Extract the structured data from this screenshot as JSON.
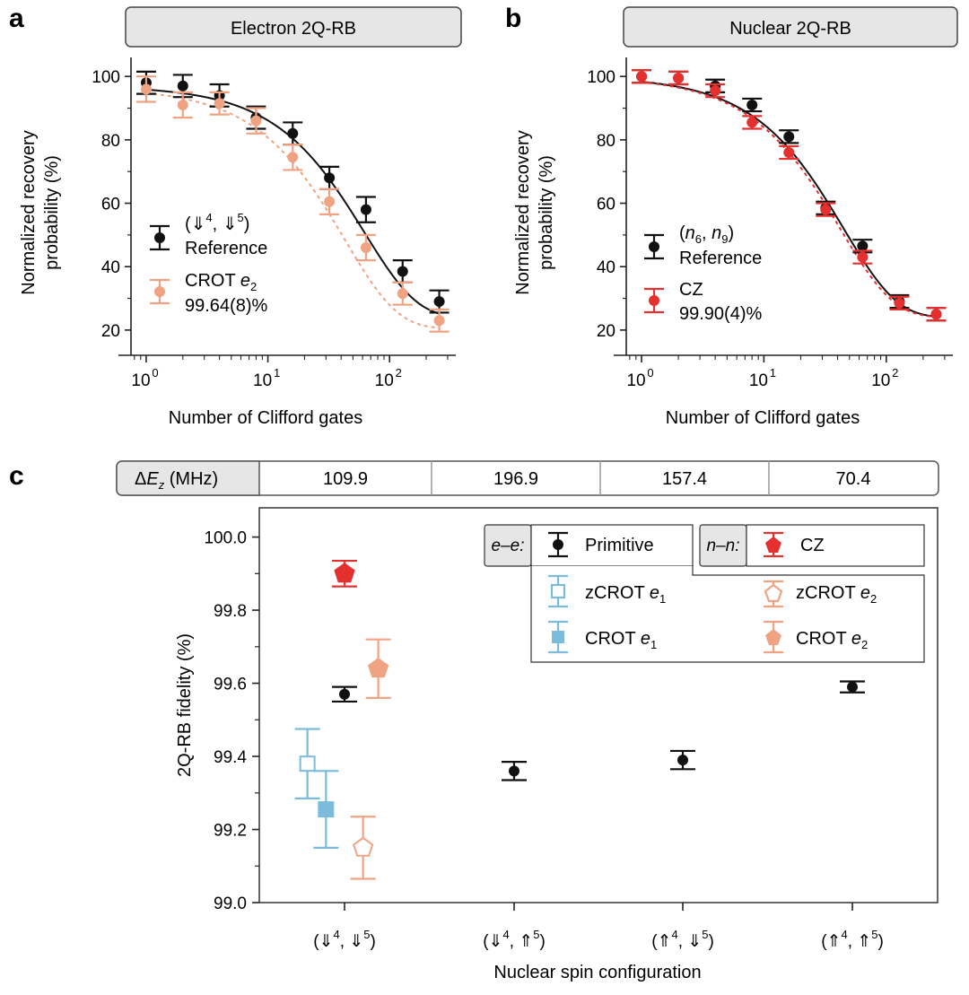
{
  "panel_labels": {
    "a": "a",
    "b": "b",
    "c": "c"
  },
  "colors": {
    "black": "#111111",
    "salmon": "#f0a383",
    "red": "#e53030",
    "lightblue": "#7bbcdc",
    "header_fill": "#e6e6e6",
    "axis": "#222222"
  },
  "chart_data": [
    {
      "type": "scatter",
      "panel": "a",
      "title": "Electron 2Q-RB",
      "xlabel": "Number of Clifford gates",
      "ylabel": "Normalized recovery probability (%)",
      "xscale": "log",
      "xlim": [
        0.75,
        350
      ],
      "ylim": [
        16,
        106
      ],
      "xticks": [
        1,
        10,
        100
      ],
      "xtick_base": "10",
      "xtick_exponents": [
        "0",
        "1",
        "2"
      ],
      "yticks": [
        20,
        40,
        60,
        80,
        100
      ],
      "ytick_labels": [
        "20",
        "40",
        "60",
        "80",
        "100"
      ],
      "series": [
        {
          "id": "reference",
          "legend_line1": "(⇓4, ⇓5)",
          "legend_line2": "Reference",
          "color": "#111111",
          "x": [
            1,
            2,
            4,
            8,
            16,
            32,
            64,
            128,
            256
          ],
          "y": [
            98,
            97,
            94,
            87,
            82,
            68,
            58,
            38.5,
            29
          ],
          "err": [
            3.5,
            3.5,
            3.5,
            3.5,
            3.5,
            3.5,
            4,
            3.5,
            3.5
          ],
          "fit": {
            "A": 73,
            "p": 0.984,
            "B": 24,
            "style": "solid"
          }
        },
        {
          "id": "crot_e2",
          "legend_line1": "CROT e2",
          "legend_line2": "99.64(8)%",
          "color": "#f0a383",
          "x": [
            1,
            2,
            4,
            8,
            16,
            32,
            64,
            128,
            256
          ],
          "y": [
            96,
            91,
            91.5,
            86,
            74.5,
            60.5,
            46,
            31.5,
            23
          ],
          "err": [
            4,
            4,
            3.5,
            4,
            4,
            4,
            4,
            3.5,
            3.5
          ],
          "fit": {
            "A": 76,
            "p": 0.977,
            "B": 20.5,
            "style": "dashed"
          }
        }
      ]
    },
    {
      "type": "scatter",
      "panel": "b",
      "title": "Nuclear 2Q-RB",
      "xlabel": "Number of Clifford gates",
      "ylabel": "Normalized recovery probability (%)",
      "xscale": "log",
      "xlim": [
        0.75,
        350
      ],
      "ylim": [
        16,
        106
      ],
      "xticks": [
        1,
        10,
        100
      ],
      "xtick_base": "10",
      "xtick_exponents": [
        "0",
        "1",
        "2"
      ],
      "yticks": [
        20,
        40,
        60,
        80,
        100
      ],
      "ytick_labels": [
        "20",
        "40",
        "60",
        "80",
        "100"
      ],
      "series": [
        {
          "id": "reference",
          "legend_line1": "(n6, n9)",
          "legend_line2": "Reference",
          "color": "#111111",
          "x": [
            1,
            2,
            4,
            8,
            16,
            32,
            64,
            128,
            256
          ],
          "y": [
            100,
            99.5,
            97,
            91,
            81,
            58.5,
            46.5,
            29,
            25
          ],
          "err": [
            2,
            2,
            2,
            2,
            2,
            2,
            2,
            2,
            2
          ],
          "fit": {
            "A": 76,
            "p": 0.978,
            "B": 24,
            "style": "solid"
          }
        },
        {
          "id": "cz",
          "legend_line1": "CZ",
          "legend_line2": "99.90(4)%",
          "color": "#e53030",
          "x": [
            1,
            2,
            4,
            8,
            16,
            32,
            64,
            128,
            256
          ],
          "y": [
            100,
            99.5,
            95.5,
            85.5,
            76,
            58,
            43,
            28.5,
            25
          ],
          "err": [
            2,
            2,
            2,
            2,
            2,
            2,
            2,
            2,
            2
          ],
          "fit": {
            "A": 76,
            "p": 0.9765,
            "B": 24,
            "style": "dashed"
          }
        }
      ]
    },
    {
      "type": "scatter",
      "panel": "c",
      "xlabel": "Nuclear spin configuration",
      "ylabel": "2Q-RB fidelity (%)",
      "ylim": [
        99.0,
        100.08
      ],
      "yticks": [
        99.0,
        99.2,
        99.4,
        99.6,
        99.8,
        100.0
      ],
      "ytick_labels": [
        "99.0",
        "99.2",
        "99.4",
        "99.6",
        "99.8",
        "100.0"
      ],
      "categories": [
        "(⇓4, ⇓5)",
        "(⇓4, ⇑5)",
        "(⇑4, ⇓5)",
        "(⇑4, ⇑5)"
      ],
      "delta_ez_header": "ΔEz (MHz)",
      "delta_ez_values": [
        "109.9",
        "196.9",
        "157.4",
        "70.4"
      ],
      "legend_groups": {
        "ee": "e–e:",
        "nn": "n–n:"
      },
      "series": [
        {
          "id": "primitive",
          "name": "Primitive",
          "marker": "circle",
          "color": "#111111",
          "filled": true,
          "points": [
            {
              "cat": 0,
              "offset": 0.0,
              "y": 99.57,
              "err": 0.02
            },
            {
              "cat": 1,
              "offset": 0.0,
              "y": 99.36,
              "err": 0.025
            },
            {
              "cat": 2,
              "offset": 0.0,
              "y": 99.39,
              "err": 0.025
            },
            {
              "cat": 3,
              "offset": 0.0,
              "y": 99.59,
              "err": 0.015
            }
          ]
        },
        {
          "id": "cz",
          "name": "CZ",
          "marker": "pentagon",
          "color": "#e53030",
          "filled": true,
          "points": [
            {
              "cat": 0,
              "offset": 0.0,
              "y": 99.9,
              "err": 0.035
            }
          ]
        },
        {
          "id": "zcrot_e1",
          "name": "zCROT e1",
          "marker": "square",
          "color": "#7bbcdc",
          "filled": false,
          "points": [
            {
              "cat": 0,
              "offset": -0.22,
              "y": 99.38,
              "err": 0.095
            }
          ]
        },
        {
          "id": "crot_e1",
          "name": "CROT e1",
          "marker": "square",
          "color": "#7bbcdc",
          "filled": true,
          "points": [
            {
              "cat": 0,
              "offset": -0.11,
              "y": 99.255,
              "err": 0.105
            }
          ]
        },
        {
          "id": "zcrot_e2",
          "name": "zCROT e2",
          "marker": "pentagon",
          "color": "#f0a383",
          "filled": false,
          "points": [
            {
              "cat": 0,
              "offset": 0.11,
              "y": 99.15,
              "err": 0.085
            }
          ]
        },
        {
          "id": "crot_e2",
          "name": "CROT e2",
          "marker": "pentagon",
          "color": "#f0a383",
          "filled": true,
          "points": [
            {
              "cat": 0,
              "offset": 0.2,
              "y": 99.64,
              "err": 0.08
            }
          ]
        }
      ]
    }
  ]
}
